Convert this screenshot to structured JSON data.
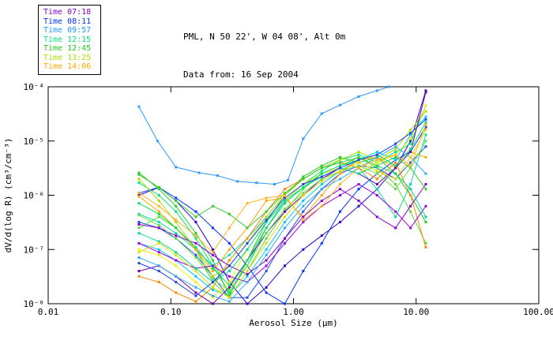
{
  "header": {
    "line1": "PML, N 50 22', W 04 08', Alt 0m",
    "line2": "Data from: 16 Sep 2004"
  },
  "legend": {
    "entries": [
      {
        "label": "Time 07:18",
        "color": "#8800CC"
      },
      {
        "label": "Time 08:11",
        "color": "#0033FF"
      },
      {
        "label": "Time 09:57",
        "color": "#1E9AFF"
      },
      {
        "label": "Time 12:15",
        "color": "#00E673"
      },
      {
        "label": "Time 12:45",
        "color": "#22CC22"
      },
      {
        "label": "Time 13:25",
        "color": "#AADD00"
      },
      {
        "label": "Time 14:06",
        "color": "#FFAA00"
      }
    ]
  },
  "chart_data": {
    "type": "line",
    "title": "PML, N 50 22', W 04 08', Alt 0m",
    "subtitle": "Data from: 16 Sep 2004",
    "xlabel": "Aerosol Size (μm)",
    "ylabel": "dV/d(log R) (cm³/cm⁻³)",
    "xscale": "log",
    "yscale": "log",
    "xlim": [
      0.01,
      100.0
    ],
    "ylim": [
      1e-08,
      0.0001
    ],
    "x_tick_labels": [
      "0.01",
      "0.10",
      "1.00",
      "10.00",
      "100.00"
    ],
    "x_tick_values": [
      0.01,
      0.1,
      1.0,
      10.0,
      100.0
    ],
    "y_tick_labels": [
      "10⁻⁴",
      "10⁻⁵",
      "10⁻⁶",
      "10⁻⁷",
      "10⁻⁸"
    ],
    "y_tick_values": [
      0.0001,
      1e-05,
      1e-06,
      1e-07,
      1e-08
    ],
    "grid": false,
    "legend_position": "outside-top-left",
    "marker": "square",
    "x_default": [
      0.055,
      0.08,
      0.11,
      0.16,
      0.22,
      0.3,
      0.42,
      0.6,
      0.85,
      1.2,
      1.7,
      2.4,
      3.4,
      4.8,
      6.8,
      9.0,
      12.0
    ],
    "series": [
      {
        "name": "09:57-a",
        "time_group": "09:57",
        "color": "#2E9AFF",
        "x": [
          0.055,
          0.078,
          0.11,
          0.17,
          0.24,
          0.35,
          0.5,
          0.7,
          0.9,
          1.2,
          1.7,
          2.4,
          3.4,
          4.8,
          6.0
        ],
        "y": [
          4.3e-05,
          1e-05,
          3.3e-06,
          2.6e-06,
          2.3e-06,
          1.8e-06,
          1.7e-06,
          1.6e-06,
          1.9e-06,
          1.1e-05,
          3.2e-05,
          4.6e-05,
          6.6e-05,
          8.5e-05,
          0.0001
        ]
      },
      {
        "name": "08:11-a",
        "time_group": "08:11",
        "color": "#3300CC",
        "y": [
          1e-06,
          1.4e-06,
          7.9e-07,
          3.2e-07,
          1e-07,
          2.5e-08,
          1e-08,
          2e-08,
          5e-08,
          1e-07,
          1.8e-07,
          3.2e-07,
          6.3e-07,
          1.3e-06,
          3.2e-06,
          1e-05,
          8.5e-05
        ]
      },
      {
        "name": "08:11-b",
        "time_group": "08:11",
        "color": "#0033FF",
        "y": [
          1.1e-06,
          1.4e-06,
          8.9e-07,
          5e-07,
          2.5e-07,
          1.3e-07,
          5e-08,
          1.6e-08,
          1e-08,
          4e-08,
          1.3e-07,
          5e-07,
          1.3e-06,
          2.5e-06,
          4.5e-06,
          6.3e-06,
          1.8e-05
        ]
      },
      {
        "name": "08:11-c",
        "time_group": "08:11",
        "color": "#1A53E8",
        "y": [
          3.2e-07,
          2.5e-07,
          1.6e-07,
          7.9e-08,
          3.2e-08,
          1.3e-08,
          1.3e-08,
          4e-08,
          1.6e-07,
          5e-07,
          1.3e-06,
          2.5e-06,
          3.5e-06,
          3.2e-06,
          2e-06,
          4e-06,
          7.9e-06
        ]
      },
      {
        "name": "09:57-b",
        "time_group": "09:57",
        "color": "#00CCFF",
        "y": [
          1.3e-07,
          1e-07,
          6.3e-08,
          3.2e-08,
          1.8e-08,
          1.4e-08,
          3.2e-08,
          1e-07,
          3.2e-07,
          7.9e-07,
          1.6e-06,
          2.8e-06,
          4.5e-06,
          6.3e-06,
          4.5e-06,
          1.3e-05,
          2.8e-05
        ]
      },
      {
        "name": "12:15-a",
        "time_group": "12:15",
        "color": "#00DDB0",
        "y": [
          4.5e-07,
          3.2e-07,
          2e-07,
          1e-07,
          5e-08,
          7.9e-08,
          1.6e-07,
          4e-07,
          1e-06,
          2e-06,
          3.2e-06,
          4e-06,
          3.2e-06,
          1.3e-06,
          4e-07,
          1.6e-06,
          1.3e-05
        ]
      },
      {
        "name": "12:15-b",
        "time_group": "12:15",
        "color": "#00E673",
        "y": [
          1.7e-06,
          1e-06,
          5e-07,
          1.6e-07,
          5e-08,
          1.6e-08,
          5e-08,
          2.5e-07,
          7.9e-07,
          1.6e-06,
          2.8e-06,
          4.5e-06,
          5.6e-06,
          4e-06,
          6.3e-06,
          8.9e-06,
          4.5e-05
        ]
      },
      {
        "name": "12:45-a",
        "time_group": "12:45",
        "color": "#22CC22",
        "y": [
          2.6e-06,
          1.3e-06,
          6.3e-07,
          2e-07,
          6.3e-08,
          1.4e-08,
          6.3e-08,
          3.2e-07,
          1e-06,
          2.2e-06,
          3.5e-06,
          5e-06,
          4e-06,
          5e-06,
          2.5e-06,
          1e-06,
          3.2e-07
        ]
      },
      {
        "name": "12:45-b",
        "time_group": "12:45",
        "color": "#55DD33",
        "y": [
          2.5e-07,
          4e-07,
          2.5e-07,
          1e-07,
          2.5e-08,
          1.3e-08,
          4e-08,
          1.6e-07,
          5e-07,
          1.3e-06,
          2.5e-06,
          3.5e-06,
          5e-06,
          3.2e-06,
          1.6e-06,
          5e-07,
          1.3e-07
        ]
      },
      {
        "name": "13:25-a",
        "time_group": "13:25",
        "color": "#AADD00",
        "y": [
          2e-06,
          7.9e-07,
          3.2e-07,
          1e-07,
          3.2e-08,
          5e-08,
          1.3e-07,
          4e-07,
          1e-06,
          2e-06,
          3.2e-06,
          4.5e-06,
          6.3e-06,
          4.5e-06,
          7.1e-06,
          1.6e-05,
          3.5e-05
        ]
      },
      {
        "name": "13:25-b",
        "time_group": "13:25",
        "color": "#EEEE00",
        "y": [
          1e-07,
          7.9e-08,
          5e-08,
          2.5e-08,
          1.3e-08,
          2.5e-08,
          1e-07,
          3.2e-07,
          7.9e-07,
          1.6e-06,
          2.5e-06,
          3.2e-06,
          2.5e-06,
          4e-06,
          5.6e-06,
          1.1e-05,
          4.5e-05
        ]
      },
      {
        "name": "14:06-a",
        "time_group": "14:06",
        "color": "#FFAA00",
        "y": [
          9.5e-07,
          5e-07,
          2.5e-07,
          1e-07,
          4e-08,
          1e-07,
          2.5e-07,
          7.9e-07,
          8.9e-07,
          4e-07,
          1e-06,
          2.5e-06,
          4.5e-06,
          5e-06,
          3.2e-06,
          6.3e-06,
          5e-06
        ]
      },
      {
        "name": "14:06-b",
        "time_group": "14:06",
        "color": "#FF8800",
        "y": [
          3.2e-08,
          2.5e-08,
          1.6e-08,
          1.1e-08,
          2e-08,
          6.3e-08,
          1.6e-07,
          5e-07,
          1.3e-06,
          2e-06,
          3.2e-06,
          4e-06,
          3.2e-06,
          2e-06,
          4e-06,
          1e-06,
          1.1e-07
        ]
      },
      {
        "name": "07:18-a",
        "time_group": "07:18",
        "color": "#8800CC",
        "y": [
          2.9e-07,
          2.5e-07,
          1.8e-07,
          1.3e-07,
          7.9e-08,
          5e-08,
          3.5e-08,
          6.3e-08,
          1.6e-07,
          4e-07,
          7.9e-07,
          1.3e-06,
          7.9e-07,
          4e-07,
          2.5e-07,
          6.3e-07,
          1.6e-06
        ]
      },
      {
        "name": "07:18-b",
        "time_group": "07:18",
        "color": "#6A00A8",
        "y": [
          4e-08,
          5e-08,
          3.2e-08,
          1.6e-08,
          1e-08,
          2e-08,
          6.3e-08,
          2e-07,
          5e-07,
          1e-06,
          2e-06,
          3.2e-06,
          2.5e-06,
          1.6e-06,
          3.2e-06,
          6.3e-06,
          7.9e-05
        ]
      },
      {
        "name": "07:18-c",
        "time_group": "07:18",
        "color": "#9900E6",
        "y": [
          1.3e-07,
          8.9e-08,
          6.3e-08,
          4.5e-08,
          5e-08,
          3.2e-08,
          2.5e-08,
          5e-08,
          1.3e-07,
          3.2e-07,
          6.3e-07,
          1e-06,
          1.6e-06,
          1e-06,
          5e-07,
          2.5e-07,
          6.3e-07
        ]
      },
      {
        "name": "09:57-c",
        "time_group": "09:57",
        "color": "#33AAEE",
        "y": [
          7.1e-08,
          5e-08,
          3.2e-08,
          2e-08,
          1.4e-08,
          1.1e-08,
          2.5e-08,
          7.9e-08,
          2.5e-07,
          6.3e-07,
          1.3e-06,
          2e-06,
          3.2e-06,
          5e-06,
          7.9e-06,
          5e-06,
          2.5e-06
        ]
      },
      {
        "name": "12:15-c",
        "time_group": "12:15",
        "color": "#00D898",
        "y": [
          2e-07,
          1.4e-07,
          8.9e-08,
          4.5e-08,
          2.5e-08,
          4e-08,
          1e-07,
          3.2e-07,
          7.9e-07,
          1.4e-06,
          2.2e-06,
          3.2e-06,
          2.5e-06,
          3.5e-06,
          2.5e-06,
          1.3e-06,
          4e-07
        ]
      },
      {
        "name": "12:45-c",
        "time_group": "12:45",
        "color": "#33CC33",
        "y": [
          2.4e-06,
          1.4e-06,
          7.9e-07,
          4e-07,
          6.3e-07,
          4.5e-07,
          2.5e-07,
          5e-07,
          1.1e-06,
          2e-06,
          3.2e-06,
          4e-06,
          5e-06,
          3.5e-06,
          5e-06,
          3.2e-06,
          1.3e-06
        ]
      },
      {
        "name": "12:45-d",
        "time_group": "12:45",
        "color": "#66DD44",
        "y": [
          4.3e-07,
          2.8e-07,
          1.6e-07,
          7.1e-08,
          2.8e-08,
          1.8e-08,
          5e-08,
          2e-07,
          5.6e-07,
          1.1e-06,
          2e-06,
          2.8e-06,
          3.5e-06,
          2.5e-06,
          1.3e-06,
          3.2e-06,
          1e-05
        ]
      },
      {
        "name": "13:25-c",
        "time_group": "13:25",
        "color": "#DDDD00",
        "y": [
          8.9e-08,
          1.3e-07,
          7.9e-08,
          4e-08,
          2e-08,
          1.3e-08,
          4e-08,
          1.3e-07,
          4e-07,
          1e-06,
          1.8e-06,
          2.8e-06,
          4e-06,
          2.8e-06,
          2e-06,
          5e-06,
          1.6e-05
        ]
      },
      {
        "name": "12:15-d",
        "time_group": "12:15",
        "color": "#00E060",
        "y": [
          7.1e-07,
          4.5e-07,
          2.5e-07,
          1.1e-07,
          4.5e-08,
          2.2e-08,
          6.3e-08,
          2.5e-07,
          7.1e-07,
          1.4e-06,
          2.5e-06,
          3.5e-06,
          4.5e-06,
          5.6e-06,
          3.5e-06,
          7.1e-06,
          2.2e-05
        ]
      },
      {
        "name": "08:11-d",
        "time_group": "08:11",
        "color": "#2244DD",
        "y": [
          5.6e-08,
          4e-08,
          2.5e-08,
          1.4e-08,
          2.5e-08,
          5e-08,
          1.3e-07,
          3.5e-07,
          8.9e-07,
          1.6e-06,
          2.2e-06,
          3.2e-06,
          4.5e-06,
          5.6e-06,
          8.9e-06,
          1.4e-05,
          2.5e-05
        ]
      },
      {
        "name": "14:06-c",
        "time_group": "14:06",
        "color": "#FFB41E",
        "y": [
          1.1e-06,
          6.3e-07,
          3.5e-07,
          1.8e-07,
          8.9e-08,
          2.5e-07,
          7.1e-07,
          8.9e-07,
          1e-06,
          3.5e-07,
          6.3e-07,
          1.6e-06,
          3.2e-06,
          4.5e-06,
          5.6e-06,
          3.5e-06,
          2e-05
        ]
      }
    ]
  }
}
